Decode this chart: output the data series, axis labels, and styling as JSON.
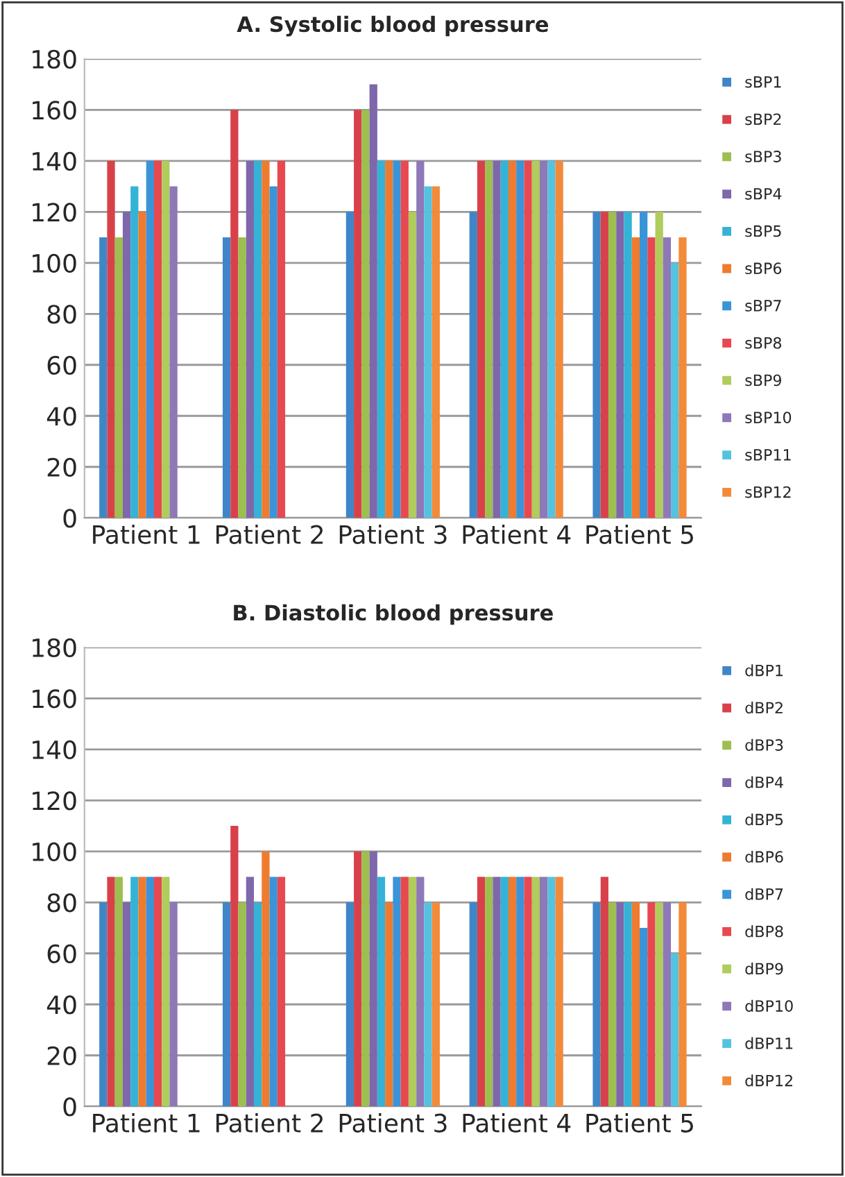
{
  "chart_data": [
    {
      "type": "bar",
      "title": "A. Systolic blood pressure",
      "categories": [
        "Patient 1",
        "Patient 2",
        "Patient 3",
        "Patient 4",
        "Patient 5"
      ],
      "ylim": [
        0,
        180
      ],
      "yticks": [
        0,
        20,
        40,
        60,
        80,
        100,
        120,
        140,
        160,
        180
      ],
      "grid": "y",
      "legend": "right",
      "series": [
        {
          "name": "sBP1",
          "color": "#3f86c8",
          "values": [
            110,
            110,
            120,
            120,
            120
          ]
        },
        {
          "name": "sBP2",
          "color": "#d9414a",
          "values": [
            140,
            160,
            160,
            140,
            120
          ]
        },
        {
          "name": "sBP3",
          "color": "#9dbf4f",
          "values": [
            110,
            110,
            160,
            140,
            120
          ]
        },
        {
          "name": "sBP4",
          "color": "#7f67ab",
          "values": [
            120,
            140,
            170,
            140,
            120
          ]
        },
        {
          "name": "sBP5",
          "color": "#34b3d6",
          "values": [
            130,
            140,
            140,
            140,
            120
          ]
        },
        {
          "name": "sBP6",
          "color": "#ee7b2f",
          "values": [
            120,
            140,
            140,
            140,
            110
          ]
        },
        {
          "name": "sBP7",
          "color": "#3a94d8",
          "values": [
            140,
            130,
            140,
            140,
            120
          ]
        },
        {
          "name": "sBP8",
          "color": "#e8484f",
          "values": [
            140,
            140,
            140,
            140,
            110
          ]
        },
        {
          "name": "sBP9",
          "color": "#b0cc5c",
          "values": [
            140,
            null,
            120,
            140,
            120
          ]
        },
        {
          "name": "sBP10",
          "color": "#8e78b8",
          "values": [
            130,
            null,
            140,
            140,
            110
          ]
        },
        {
          "name": "sBP11",
          "color": "#55c3df",
          "values": [
            null,
            null,
            130,
            140,
            100
          ]
        },
        {
          "name": "sBP12",
          "color": "#f38a3a",
          "values": [
            null,
            null,
            130,
            140,
            110
          ]
        }
      ]
    },
    {
      "type": "bar",
      "title": "B. Diastolic blood pressure",
      "categories": [
        "Patient 1",
        "Patient 2",
        "Patient 3",
        "Patient 4",
        "Patient 5"
      ],
      "ylim": [
        0,
        180
      ],
      "yticks": [
        0,
        20,
        40,
        60,
        80,
        100,
        120,
        140,
        160,
        180
      ],
      "grid": "y",
      "legend": "right",
      "series": [
        {
          "name": "dBP1",
          "color": "#3f86c8",
          "values": [
            80,
            80,
            80,
            80,
            80
          ]
        },
        {
          "name": "dBP2",
          "color": "#d9414a",
          "values": [
            90,
            110,
            100,
            90,
            90
          ]
        },
        {
          "name": "dBP3",
          "color": "#9dbf4f",
          "values": [
            90,
            80,
            100,
            90,
            80
          ]
        },
        {
          "name": "dBP4",
          "color": "#7f67ab",
          "values": [
            80,
            90,
            100,
            90,
            80
          ]
        },
        {
          "name": "dBP5",
          "color": "#34b3d6",
          "values": [
            90,
            80,
            90,
            90,
            80
          ]
        },
        {
          "name": "dBP6",
          "color": "#ee7b2f",
          "values": [
            90,
            100,
            80,
            90,
            80
          ]
        },
        {
          "name": "dBP7",
          "color": "#3a94d8",
          "values": [
            90,
            90,
            90,
            90,
            70
          ]
        },
        {
          "name": "dBP8",
          "color": "#e8484f",
          "values": [
            90,
            90,
            90,
            90,
            80
          ]
        },
        {
          "name": "dBP9",
          "color": "#b0cc5c",
          "values": [
            90,
            null,
            90,
            90,
            80
          ]
        },
        {
          "name": "dBP10",
          "color": "#8e78b8",
          "values": [
            80,
            null,
            90,
            90,
            80
          ]
        },
        {
          "name": "dBP11",
          "color": "#55c3df",
          "values": [
            null,
            null,
            80,
            90,
            60
          ]
        },
        {
          "name": "dBP12",
          "color": "#f38a3a",
          "values": [
            null,
            null,
            80,
            90,
            80
          ]
        }
      ]
    }
  ]
}
